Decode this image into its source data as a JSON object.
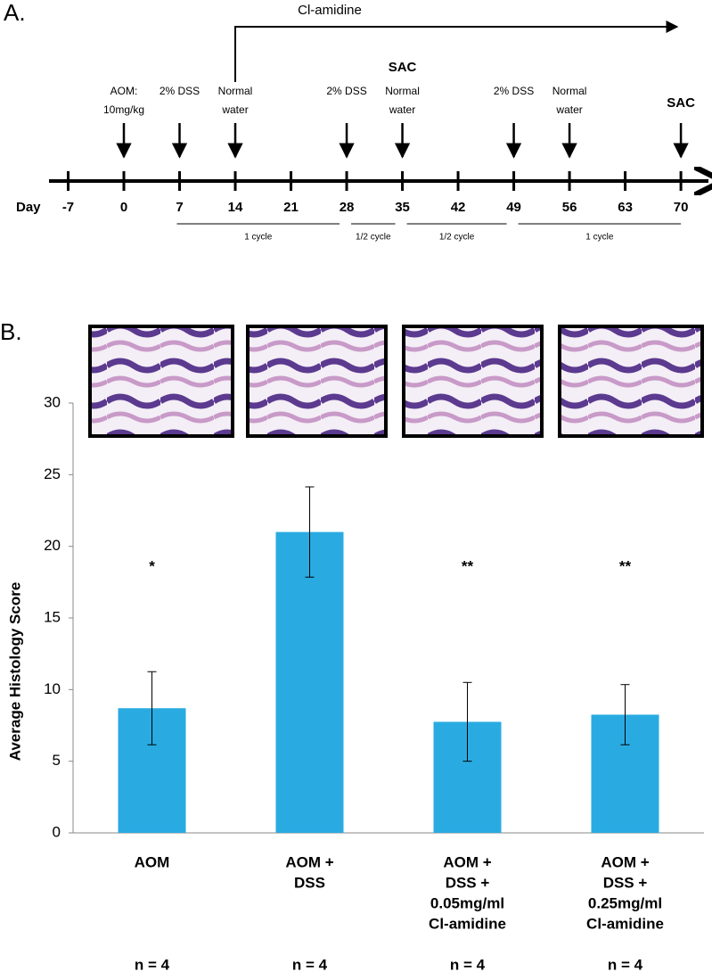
{
  "panel_a": {
    "label": "A.",
    "axis_label": "Day",
    "days": [
      -7,
      0,
      7,
      14,
      21,
      28,
      35,
      42,
      49,
      56,
      63,
      70
    ],
    "treatment": {
      "label": "Cl-amidine",
      "start_day": 14
    },
    "events": [
      {
        "day": 0,
        "label": [
          "AOM:",
          "10mg/kg"
        ]
      },
      {
        "day": 7,
        "label": [
          "2% DSS"
        ]
      },
      {
        "day": 14,
        "label": [
          "Normal",
          "water"
        ]
      },
      {
        "day": 28,
        "label": [
          "2% DSS"
        ]
      },
      {
        "day": 35,
        "label": [
          "Normal",
          "water"
        ]
      },
      {
        "day": 49,
        "label": [
          "2% DSS"
        ]
      },
      {
        "day": 56,
        "label": [
          "Normal",
          "water"
        ]
      }
    ],
    "sacrifices": [
      {
        "day": 35,
        "label": "SAC"
      },
      {
        "day": 70,
        "label": "SAC"
      }
    ],
    "cycles": [
      {
        "from": 7,
        "to": 28,
        "label": "1 cycle"
      },
      {
        "from": 28,
        "to": 35,
        "label": "1/2 cycle"
      },
      {
        "from": 35,
        "to": 49,
        "label": "1/2 cycle"
      },
      {
        "from": 49,
        "to": 70,
        "label": "1 cycle"
      }
    ]
  },
  "chart_data": {
    "type": "bar",
    "panel_label": "B.",
    "ylabel": "Average Histology Score",
    "categories": [
      [
        "AOM"
      ],
      [
        "AOM +",
        "DSS"
      ],
      [
        "AOM +",
        "DSS +",
        "0.05mg/ml",
        "Cl-amidine"
      ],
      [
        "AOM +",
        "DSS +",
        "0.25mg/ml",
        "Cl-amidine"
      ]
    ],
    "values": [
      8.7,
      21,
      7.75,
      8.25
    ],
    "errors": [
      2.55,
      3.15,
      2.75,
      2.1
    ],
    "annotations": [
      "*",
      null,
      "**",
      "**"
    ],
    "sample_sizes": [
      "n = 4",
      "n = 4",
      "n = 4",
      "n = 4"
    ],
    "color": "#29abe2",
    "ylim": [
      0,
      30
    ],
    "yticks": [
      0,
      5,
      10,
      15,
      20,
      25,
      30
    ]
  }
}
